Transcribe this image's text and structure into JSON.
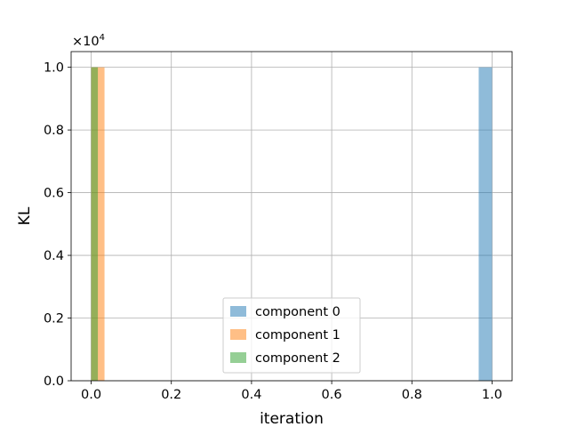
{
  "chart_data": {
    "type": "bar",
    "xlabel": "iteration",
    "ylabel": "KL",
    "y_multiplier_label": "×10",
    "y_multiplier_exponent": "4",
    "xlim": [
      -0.05,
      1.05
    ],
    "ylim": [
      0,
      1.05
    ],
    "x_ticks": [
      0.0,
      0.2,
      0.4,
      0.6,
      0.8,
      1.0
    ],
    "x_tick_labels": [
      "0.0",
      "0.2",
      "0.4",
      "0.6",
      "0.8",
      "1.0"
    ],
    "y_ticks": [
      0.0,
      0.2,
      0.4,
      0.6,
      0.8,
      1.0
    ],
    "y_tick_labels": [
      "0.0",
      "0.2",
      "0.4",
      "0.6",
      "0.8",
      "1.0"
    ],
    "grid": true,
    "legend_position": "lower-center",
    "bar_width": 0.0333,
    "series": [
      {
        "name": "component 0",
        "color": "#1f77b4",
        "alpha": 0.5,
        "bars": [
          {
            "x_start": 0.9667,
            "x_end": 1.0,
            "value": 1.0
          }
        ]
      },
      {
        "name": "component 1",
        "color": "#ff7f0e",
        "alpha": 0.5,
        "bars": [
          {
            "x_start": 0.0,
            "x_end": 0.0333,
            "value": 1.0
          }
        ]
      },
      {
        "name": "component 2",
        "color": "#2ca02c",
        "alpha": 0.5,
        "bars": [
          {
            "x_start": 0.0,
            "x_end": 0.0167,
            "value": 1.0
          }
        ]
      }
    ]
  }
}
